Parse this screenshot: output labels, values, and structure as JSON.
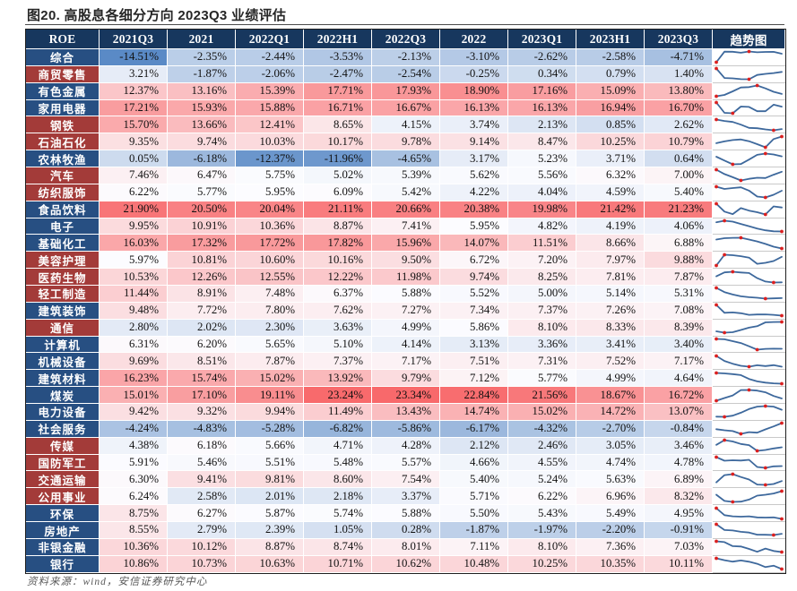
{
  "title": "图20. 高股息各细分方向 2023Q3 业绩评估",
  "source_note": "资料来源：wind，安信证券研究中心",
  "colors": {
    "header_bg": "#17375E",
    "label_blue": "#274F82",
    "label_red": "#A33B39",
    "heat_min_blue": "#5A8AC6",
    "heat_mid_white": "#FCFCFF",
    "heat_max_red": "#F8696B",
    "spark_line": "#3D689C",
    "spark_marker": "#DB2020",
    "title_text": "#262626",
    "source_text": "#595959"
  },
  "heat_scale": {
    "min": -14.51,
    "mid": 6.0,
    "max": 23.34
  },
  "chart_data": {
    "type": "heatmap",
    "title": "图20. 高股息各细分方向 2023Q3 业绩评估",
    "unit": "%",
    "columns": [
      "ROE",
      "2021Q3",
      "2021",
      "2022Q1",
      "2022H1",
      "2022Q3",
      "2022",
      "2023Q1",
      "2023H1",
      "2023Q3",
      "趋势图"
    ],
    "trend_note": "sparkline per row, red markers at row max and min",
    "rows": [
      {
        "label": "综合",
        "label_color": "blue",
        "values": [
          -14.51,
          -2.35,
          -2.44,
          -3.53,
          -2.13,
          -3.1,
          -2.62,
          -2.58,
          -4.71
        ]
      },
      {
        "label": "商贸零售",
        "label_color": "red",
        "values": [
          3.21,
          -1.87,
          -2.06,
          -2.47,
          -2.54,
          -0.25,
          0.34,
          0.79,
          1.4
        ]
      },
      {
        "label": "有色金属",
        "label_color": "blue",
        "values": [
          12.37,
          13.16,
          15.39,
          17.71,
          17.93,
          18.9,
          17.16,
          15.09,
          13.8
        ]
      },
      {
        "label": "家用电器",
        "label_color": "blue",
        "values": [
          17.21,
          15.93,
          15.88,
          16.71,
          16.67,
          16.13,
          16.13,
          16.94,
          16.7
        ]
      },
      {
        "label": "钢铁",
        "label_color": "red",
        "values": [
          15.7,
          13.66,
          12.41,
          8.65,
          4.15,
          3.74,
          2.13,
          0.85,
          2.62
        ]
      },
      {
        "label": "石油石化",
        "label_color": "red",
        "values": [
          9.35,
          9.74,
          10.03,
          10.17,
          9.78,
          9.14,
          8.47,
          10.25,
          10.79
        ]
      },
      {
        "label": "农林牧渔",
        "label_color": "blue",
        "values": [
          0.05,
          -6.18,
          -12.37,
          -11.96,
          -4.65,
          3.17,
          5.23,
          3.71,
          0.64
        ]
      },
      {
        "label": "汽车",
        "label_color": "red",
        "values": [
          7.46,
          6.47,
          5.75,
          5.02,
          5.39,
          5.62,
          5.56,
          6.32,
          7.0
        ]
      },
      {
        "label": "纺织服饰",
        "label_color": "red",
        "values": [
          6.22,
          5.77,
          5.95,
          6.09,
          5.42,
          4.22,
          4.04,
          4.59,
          5.4
        ]
      },
      {
        "label": "食品饮料",
        "label_color": "blue",
        "values": [
          21.9,
          20.5,
          20.04,
          21.11,
          20.66,
          20.38,
          19.98,
          21.42,
          21.23
        ]
      },
      {
        "label": "电子",
        "label_color": "blue",
        "values": [
          9.95,
          10.91,
          10.36,
          8.87,
          7.41,
          5.95,
          4.82,
          4.19,
          4.06
        ]
      },
      {
        "label": "基础化工",
        "label_color": "blue",
        "values": [
          16.03,
          17.32,
          17.72,
          17.82,
          15.96,
          14.07,
          11.51,
          8.66,
          6.88
        ]
      },
      {
        "label": "美容护理",
        "label_color": "red",
        "values": [
          5.97,
          10.81,
          10.6,
          10.16,
          9.5,
          6.72,
          7.2,
          7.97,
          9.88
        ]
      },
      {
        "label": "医药生物",
        "label_color": "red",
        "values": [
          10.53,
          12.26,
          12.55,
          12.22,
          11.98,
          9.74,
          8.25,
          7.81,
          7.87
        ]
      },
      {
        "label": "轻工制造",
        "label_color": "red",
        "values": [
          11.44,
          8.91,
          7.48,
          6.37,
          5.88,
          5.52,
          5.0,
          5.14,
          5.31
        ]
      },
      {
        "label": "建筑装饰",
        "label_color": "blue",
        "values": [
          9.48,
          7.72,
          7.8,
          7.62,
          7.27,
          7.34,
          7.37,
          7.26,
          7.08
        ]
      },
      {
        "label": "通信",
        "label_color": "red",
        "values": [
          2.8,
          2.02,
          2.3,
          3.63,
          4.99,
          5.86,
          8.1,
          8.33,
          8.39
        ]
      },
      {
        "label": "计算机",
        "label_color": "blue",
        "values": [
          6.31,
          6.2,
          5.65,
          5.1,
          4.14,
          3.13,
          3.36,
          3.41,
          3.4
        ]
      },
      {
        "label": "机械设备",
        "label_color": "blue",
        "values": [
          9.69,
          8.51,
          7.87,
          7.37,
          7.17,
          7.51,
          7.31,
          7.52,
          7.17
        ]
      },
      {
        "label": "建筑材料",
        "label_color": "blue",
        "values": [
          16.23,
          15.74,
          15.02,
          13.92,
          9.79,
          7.12,
          5.77,
          4.99,
          4.64
        ]
      },
      {
        "label": "煤炭",
        "label_color": "blue",
        "values": [
          15.01,
          17.1,
          19.11,
          23.24,
          23.34,
          22.84,
          21.56,
          18.67,
          16.72
        ]
      },
      {
        "label": "电力设备",
        "label_color": "blue",
        "values": [
          9.42,
          9.32,
          9.94,
          11.49,
          13.43,
          14.74,
          15.02,
          14.72,
          13.07
        ]
      },
      {
        "label": "社会服务",
        "label_color": "blue",
        "values": [
          -4.24,
          -4.83,
          -5.28,
          -6.82,
          -5.86,
          -6.17,
          -4.32,
          -2.7,
          -0.84
        ]
      },
      {
        "label": "传媒",
        "label_color": "red",
        "values": [
          4.38,
          6.18,
          5.66,
          4.71,
          4.28,
          2.12,
          2.46,
          3.05,
          3.46
        ]
      },
      {
        "label": "国防军工",
        "label_color": "red",
        "values": [
          5.91,
          5.46,
          5.51,
          5.48,
          5.57,
          4.66,
          4.55,
          4.74,
          4.78
        ]
      },
      {
        "label": "交通运输",
        "label_color": "red",
        "values": [
          6.3,
          9.41,
          9.81,
          8.6,
          7.54,
          5.4,
          5.24,
          5.63,
          6.89
        ]
      },
      {
        "label": "公用事业",
        "label_color": "red",
        "values": [
          6.24,
          2.58,
          2.01,
          2.18,
          3.37,
          5.71,
          6.22,
          6.96,
          8.32
        ]
      },
      {
        "label": "环保",
        "label_color": "blue",
        "values": [
          8.75,
          6.27,
          5.87,
          5.74,
          5.88,
          5.5,
          5.43,
          5.49,
          4.95
        ]
      },
      {
        "label": "房地产",
        "label_color": "blue",
        "values": [
          8.55,
          2.79,
          2.39,
          1.05,
          0.28,
          -1.87,
          -1.97,
          -2.2,
          -0.91
        ]
      },
      {
        "label": "非银金融",
        "label_color": "blue",
        "values": [
          10.36,
          10.12,
          8.87,
          8.74,
          8.01,
          7.11,
          8.1,
          7.36,
          7.03
        ]
      },
      {
        "label": "银行",
        "label_color": "blue",
        "values": [
          10.86,
          10.73,
          10.63,
          10.71,
          10.62,
          10.48,
          10.25,
          10.35,
          10.11
        ]
      }
    ]
  }
}
